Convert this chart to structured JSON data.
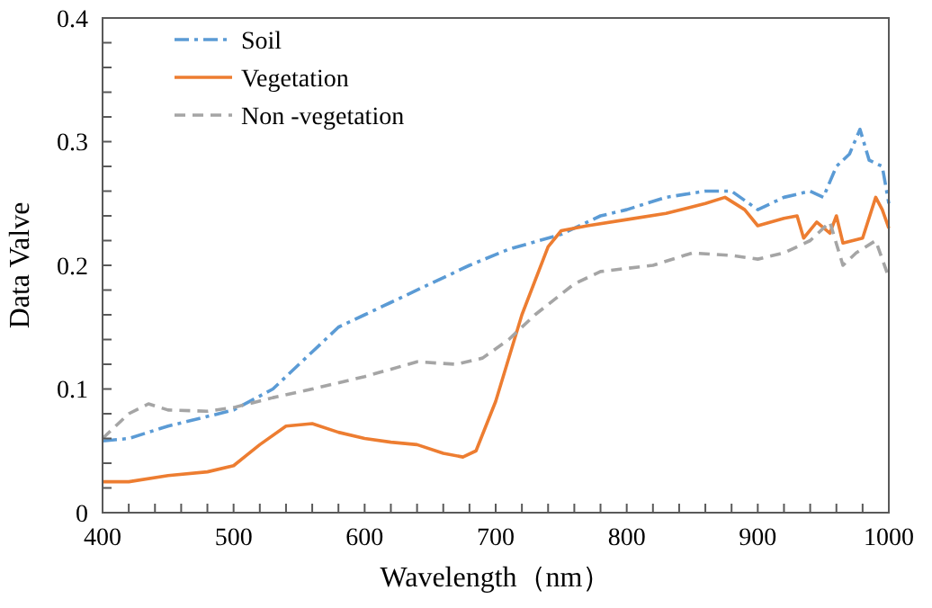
{
  "chart_data": {
    "type": "line",
    "xlabel": "Wavelength（nm）",
    "ylabel": "Data Valve",
    "xlim": [
      400,
      1000
    ],
    "ylim": [
      0,
      0.4
    ],
    "xticks": [
      400,
      {
        "value": 420,
        "label": null
      },
      {
        "value": 440,
        "label": null
      },
      {
        "value": 460,
        "label": null
      },
      {
        "value": 480,
        "label": null
      },
      500,
      {
        "value": 520,
        "label": null
      },
      {
        "value": 540,
        "label": null
      },
      {
        "value": 560,
        "label": null
      },
      {
        "value": 580,
        "label": null
      },
      600,
      {
        "value": 620,
        "label": null
      },
      {
        "value": 640,
        "label": null
      },
      {
        "value": 660,
        "label": null
      },
      {
        "value": 680,
        "label": null
      },
      700,
      {
        "value": 720,
        "label": null
      },
      {
        "value": 740,
        "label": null
      },
      {
        "value": 760,
        "label": null
      },
      {
        "value": 780,
        "label": null
      },
      800,
      {
        "value": 820,
        "label": null
      },
      {
        "value": 840,
        "label": null
      },
      {
        "value": 860,
        "label": null
      },
      {
        "value": 880,
        "label": null
      },
      900,
      {
        "value": 920,
        "label": null
      },
      {
        "value": 940,
        "label": null
      },
      {
        "value": 960,
        "label": null
      },
      {
        "value": 980,
        "label": null
      },
      1000
    ],
    "yticks": [
      0,
      {
        "value": 0.02,
        "label": null
      },
      {
        "value": 0.04,
        "label": null
      },
      {
        "value": 0.06,
        "label": null
      },
      {
        "value": 0.08,
        "label": null
      },
      0.1,
      {
        "value": 0.12,
        "label": null
      },
      {
        "value": 0.14,
        "label": null
      },
      {
        "value": 0.16,
        "label": null
      },
      {
        "value": 0.18,
        "label": null
      },
      0.2,
      {
        "value": 0.22,
        "label": null
      },
      {
        "value": 0.24,
        "label": null
      },
      {
        "value": 0.26,
        "label": null
      },
      {
        "value": 0.28,
        "label": null
      },
      0.3,
      {
        "value": 0.32,
        "label": null
      },
      {
        "value": 0.34,
        "label": null
      },
      {
        "value": 0.36,
        "label": null
      },
      {
        "value": 0.38,
        "label": null
      },
      0.4
    ],
    "legend": "top left",
    "grid": false,
    "marker": "none",
    "series": [
      {
        "name": "Soil",
        "color": "#5b9bd5",
        "line_style": "dashdot",
        "x": [
          400,
          420,
          450,
          500,
          530,
          560,
          580,
          600,
          620,
          650,
          680,
          710,
          750,
          780,
          800,
          830,
          860,
          880,
          900,
          920,
          940,
          950,
          960,
          970,
          978,
          985,
          995,
          1000
        ],
        "values": [
          0.058,
          0.06,
          0.07,
          0.083,
          0.1,
          0.13,
          0.15,
          0.16,
          0.17,
          0.185,
          0.2,
          0.213,
          0.225,
          0.24,
          0.245,
          0.255,
          0.26,
          0.26,
          0.245,
          0.255,
          0.26,
          0.255,
          0.28,
          0.29,
          0.31,
          0.285,
          0.28,
          0.25
        ]
      },
      {
        "name": "Vegetation",
        "color": "#ed7d31",
        "line_style": "solid",
        "x": [
          400,
          420,
          450,
          480,
          500,
          520,
          540,
          560,
          580,
          600,
          620,
          640,
          660,
          675,
          685,
          700,
          720,
          740,
          750,
          770,
          800,
          830,
          860,
          875,
          890,
          900,
          920,
          930,
          935,
          945,
          955,
          960,
          965,
          980,
          990,
          995,
          1000
        ],
        "values": [
          0.025,
          0.025,
          0.03,
          0.033,
          0.038,
          0.055,
          0.07,
          0.072,
          0.065,
          0.06,
          0.057,
          0.055,
          0.048,
          0.045,
          0.05,
          0.09,
          0.16,
          0.215,
          0.228,
          0.232,
          0.237,
          0.242,
          0.25,
          0.255,
          0.245,
          0.232,
          0.238,
          0.24,
          0.222,
          0.235,
          0.226,
          0.24,
          0.218,
          0.222,
          0.255,
          0.245,
          0.23
        ]
      },
      {
        "name": "Non -vegetation",
        "color": "#a5a5a5",
        "line_style": "dashed",
        "x": [
          400,
          420,
          435,
          450,
          480,
          500,
          530,
          560,
          600,
          640,
          670,
          690,
          710,
          730,
          760,
          780,
          820,
          850,
          880,
          900,
          920,
          940,
          955,
          965,
          975,
          990,
          1000
        ],
        "values": [
          0.06,
          0.08,
          0.088,
          0.083,
          0.082,
          0.085,
          0.093,
          0.1,
          0.11,
          0.122,
          0.12,
          0.125,
          0.14,
          0.16,
          0.185,
          0.195,
          0.2,
          0.21,
          0.208,
          0.205,
          0.21,
          0.22,
          0.235,
          0.2,
          0.21,
          0.22,
          0.19
        ]
      }
    ]
  }
}
